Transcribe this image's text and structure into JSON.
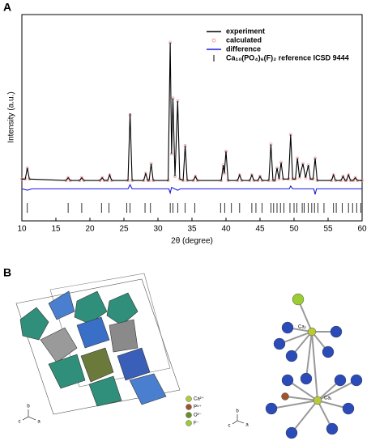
{
  "chart_data": {
    "type": "line",
    "panel_label": "A",
    "xlabel": "2θ (degree)",
    "ylabel": "Intensity (a.u.)",
    "xlim": [
      10,
      60
    ],
    "xticks": [
      10,
      15,
      20,
      25,
      30,
      35,
      40,
      45,
      50,
      55,
      60
    ],
    "ylim": [
      -28,
      120
    ],
    "x": [
      10,
      10.5,
      10.8,
      11.1,
      16.5,
      16.8,
      17.1,
      18.5,
      18.8,
      19.1,
      21.5,
      21.8,
      22.1,
      22.6,
      22.9,
      23.2,
      25.6,
      25.9,
      26.2,
      27.9,
      28.2,
      28.5,
      28.7,
      29.0,
      29.3,
      31.5,
      31.8,
      32.0,
      32.2,
      32.5,
      32.9,
      33.2,
      33.7,
      34.0,
      34.3,
      35.2,
      35.5,
      35.8,
      39.3,
      39.6,
      39.75,
      40.0,
      40.3,
      41.7,
      42.0,
      42.3,
      43.5,
      43.8,
      44.1,
      44.7,
      45.0,
      45.3,
      46.3,
      46.6,
      46.9,
      47.2,
      47.5,
      47.8,
      48.1,
      48.4,
      49.2,
      49.5,
      49.8,
      50.2,
      50.5,
      50.8,
      51.3,
      51.7,
      52.1,
      52.4,
      52.8,
      53.1,
      53.4,
      55.5,
      55.8,
      56.1,
      56.9,
      57.2,
      57.5,
      57.7,
      58.0,
      58.3,
      58.7,
      59.0,
      59.3,
      60
    ],
    "series": [
      {
        "name": "experiment",
        "color": "#000000",
        "mark": "line",
        "values": [
          2,
          2,
          10,
          2,
          1,
          3,
          1,
          1,
          3,
          1,
          1,
          3,
          1,
          1,
          5,
          1,
          1,
          49,
          1,
          1,
          6,
          1,
          1,
          13,
          1,
          1,
          100,
          20,
          60,
          4,
          58,
          2,
          1,
          26,
          1,
          1,
          4,
          1,
          1,
          12,
          6,
          22,
          1,
          1,
          5,
          1,
          1,
          5,
          1,
          1,
          4,
          1,
          1,
          27,
          1,
          1,
          10,
          2,
          14,
          2,
          2,
          34,
          2,
          2,
          17,
          3,
          13,
          3,
          12,
          2,
          2,
          17,
          1,
          1,
          5,
          1,
          1,
          4,
          1,
          1,
          5,
          1,
          1,
          3,
          1,
          1
        ]
      },
      {
        "name": "calculated",
        "color": "#f0a0a0",
        "mark": "circle",
        "values": [
          2,
          2,
          10,
          2,
          1,
          3,
          1,
          1,
          3,
          1,
          1,
          3,
          1,
          1,
          5,
          1,
          1,
          48,
          1,
          1,
          6,
          1,
          1,
          13,
          1,
          1,
          100,
          20,
          60,
          4,
          58,
          2,
          1,
          26,
          1,
          1,
          4,
          1,
          1,
          12,
          6,
          22,
          1,
          1,
          5,
          1,
          1,
          5,
          1,
          1,
          4,
          1,
          1,
          27,
          1,
          1,
          10,
          2,
          14,
          2,
          2,
          34,
          2,
          2,
          17,
          3,
          13,
          3,
          12,
          2,
          2,
          17,
          1,
          1,
          5,
          1,
          1,
          4,
          1,
          1,
          5,
          1,
          1,
          3,
          1,
          1
        ]
      },
      {
        "name": "difference",
        "color": "#1a1adf",
        "mark": "line",
        "x": [
          10,
          10.8,
          11.5,
          25.6,
          25.9,
          26.2,
          31.6,
          31.8,
          32.0,
          32.9,
          33.3,
          49.3,
          49.5,
          49.8,
          52.9,
          53.1,
          53.3,
          60
        ],
        "values": [
          -5,
          -6,
          -5,
          -5,
          -2,
          -5,
          -5,
          -8,
          -4,
          -6,
          -5,
          -5,
          -3,
          -5,
          -5,
          -9,
          -5,
          -5
        ]
      },
      {
        "name": "Ca₁₀(PO₄)₆(F)₂ reference ICSD 9444",
        "color": "#000000",
        "mark": "tick",
        "x": [
          10.8,
          16.8,
          18.8,
          21.7,
          22.8,
          25.4,
          25.9,
          28.1,
          28.9,
          31.8,
          32.2,
          32.9,
          34.0,
          35.4,
          39.2,
          39.8,
          40.8,
          42.0,
          43.8,
          44.4,
          45.3,
          46.6,
          47.0,
          47.5,
          48.0,
          48.5,
          49.4,
          50.0,
          50.4,
          51.2,
          51.5,
          52.1,
          52.6,
          53.0,
          53.5,
          54.4,
          55.8,
          56.2,
          57.1,
          58.0,
          58.6,
          59.2,
          59.8
        ]
      }
    ]
  },
  "panel_b": {
    "label": "B",
    "legend": [
      "Ca²⁺",
      "P⁵⁺",
      "O²⁻",
      "F⁻"
    ],
    "sites": [
      "Ca₂",
      "Ca₁"
    ],
    "axes": [
      "b",
      "c",
      "a"
    ]
  }
}
